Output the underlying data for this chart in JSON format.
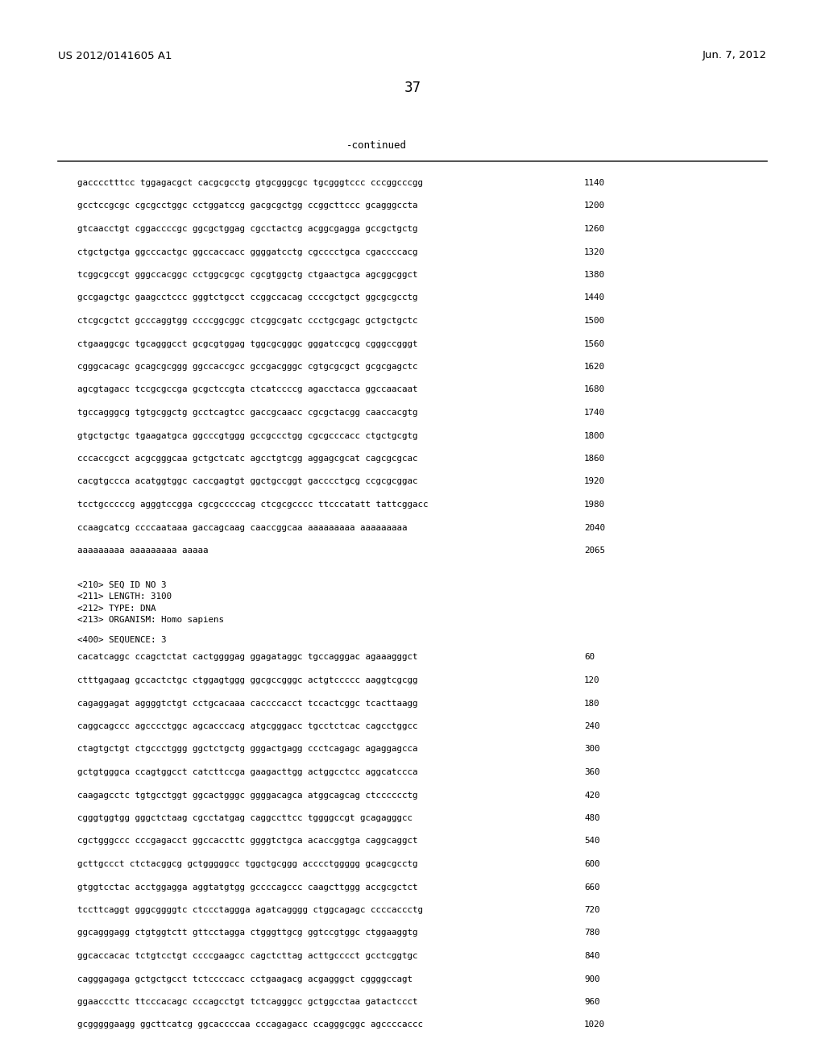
{
  "background_color": "#ffffff",
  "header_left": "US 2012/0141605 A1",
  "header_right": "Jun. 7, 2012",
  "page_number": "37",
  "continued_label": "-continued",
  "font_family": "DejaVu Sans Mono",
  "sequence_lines": [
    {
      "text": "gacccctttcc tggagacgct cacgcgcctg gtgcgggcgc tgcgggtccc cccggcccgg",
      "num": "1140"
    },
    {
      "text": "gcctccgcgc cgcgcctggc cctggatccg gacgcgctgg ccggcttccc gcagggccta",
      "num": "1200"
    },
    {
      "text": "gtcaacctgt cggaccccgc ggcgctggag cgcctactcg acggcgagga gccgctgctg",
      "num": "1260"
    },
    {
      "text": "ctgctgctga ggcccactgc ggccaccacc ggggatcctg cgcccctgca cgaccccacg",
      "num": "1320"
    },
    {
      "text": "tcggcgccgt gggccacggc cctggcgcgc cgcgtggctg ctgaactgca agcggcggct",
      "num": "1380"
    },
    {
      "text": "gccgagctgc gaagcctccc gggtctgcct ccggccacag ccccgctgct ggcgcgcctg",
      "num": "1440"
    },
    {
      "text": "ctcgcgctct gcccaggtgg ccccggcggc ctcggcgatc ccctgcgagc gctgctgctc",
      "num": "1500"
    },
    {
      "text": "ctgaaggcgc tgcagggcct gcgcgtggag tggcgcgggc gggatccgcg cgggccgggt",
      "num": "1560"
    },
    {
      "text": "cgggcacagc gcagcgcggg ggccaccgcc gccgacgggc cgtgcgcgct gcgcgagctc",
      "num": "1620"
    },
    {
      "text": "agcgtagacc tccgcgccga gcgctccgta ctcatccccg agacctacca ggccaacaat",
      "num": "1680"
    },
    {
      "text": "tgccagggcg tgtgcggctg gcctcagtcc gaccgcaacc cgcgctacgg caaccacgtg",
      "num": "1740"
    },
    {
      "text": "gtgctgctgc tgaagatgca ggcccgtggg gccgccctgg cgcgcccacc ctgctgcgtg",
      "num": "1800"
    },
    {
      "text": "cccaccgcct acgcgggcaa gctgctcatc agcctgtcgg aggagcgcat cagcgcgcac",
      "num": "1860"
    },
    {
      "text": "cacgtgccca acatggtggc caccgagtgt ggctgccggt gacccctgcg ccgcgcggac",
      "num": "1920"
    },
    {
      "text": "tcctgcccccg agggtccgga cgcgcccccag ctcgcgcccc ttcccatatt tattcggacc",
      "num": "1980"
    },
    {
      "text": "ccaagcatcg ccccaataaa gaccagcaag caaccggcaa aaaaaaaaa aaaaaaaaa",
      "num": "2040"
    },
    {
      "text": "aaaaaaaaa aaaaaaaaa aaaaa",
      "num": "2065"
    }
  ],
  "metadata_lines": [
    "<210> SEQ ID NO 3",
    "<211> LENGTH: 3100",
    "<212> TYPE: DNA",
    "<213> ORGANISM: Homo sapiens"
  ],
  "sequence_label": "<400> SEQUENCE: 3",
  "sequence2_lines": [
    {
      "text": "cacatcaggc ccagctctat cactggggag ggagataggc tgccagggac agaaagggct",
      "num": "60"
    },
    {
      "text": "ctttgagaag gccactctgc ctggagtggg ggcgccgggc actgtccccc aaggtcgcgg",
      "num": "120"
    },
    {
      "text": "cagaggagat aggggtctgt cctgcacaaa caccccacct tccactcggc tcacttaagg",
      "num": "180"
    },
    {
      "text": "caggcagccc agcccctggc agcacccacg atgcgggacc tgcctctcac cagcctggcc",
      "num": "240"
    },
    {
      "text": "ctagtgctgt ctgccctggg ggctctgctg gggactgagg ccctcagagc agaggagcca",
      "num": "300"
    },
    {
      "text": "gctgtgggca ccagtggcct catcttccga gaagacttgg actggcctcc aggcatccca",
      "num": "360"
    },
    {
      "text": "caagagcctc tgtgcctggt ggcactgggc ggggacagca atggcagcag ctcccccctg",
      "num": "420"
    },
    {
      "text": "cgggtggtgg gggctctaag cgcctatgag caggccttcc tggggccgt gcagagggcc",
      "num": "480"
    },
    {
      "text": "cgctgggccc cccgagacct ggccaccttc ggggtctgca acaccggtga caggcaggct",
      "num": "540"
    },
    {
      "text": "gcttgccct ctctacggcg gctgggggcc tggctgcggg acccctggggg gcagcgcctg",
      "num": "600"
    },
    {
      "text": "gtggtcctac acctggagga aggtatgtgg gccccagccc caagcttggg accgcgctct",
      "num": "660"
    },
    {
      "text": "tccttcaggt gggcggggtc ctccctaggga agatcagggg ctggcagagc ccccaccctg",
      "num": "720"
    },
    {
      "text": "ggcagggagg ctgtggtctt gttcctagga ctgggttgcg ggtccgtggc ctggaaggtg",
      "num": "780"
    },
    {
      "text": "ggcaccacac tctgtcctgt ccccgaagcc cagctcttag acttgcccct gcctcggtgc",
      "num": "840"
    },
    {
      "text": "cagggagaga gctgctgcct tctccccacc cctgaagacg acgagggct cggggccagt",
      "num": "900"
    },
    {
      "text": "ggaacccttc ttcccacagc cccagcctgt tctcagggcc gctggcctaa gatactccct",
      "num": "960"
    },
    {
      "text": "gcgggggaagg ggcttcatcg ggcaccccaa cccagagacc ccagggcggc agccccaccc",
      "num": "1020"
    }
  ]
}
